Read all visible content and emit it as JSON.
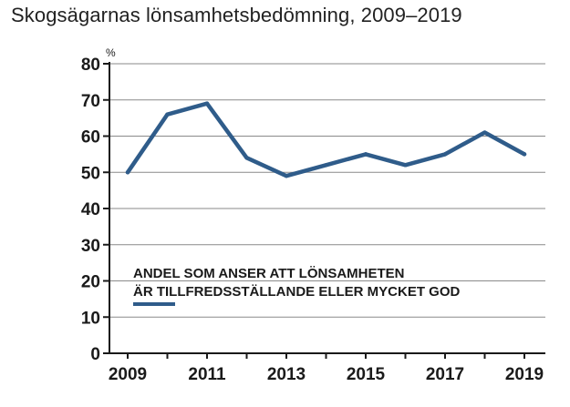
{
  "title": "Skogsägarnas lönsamhetsbedömning, 2009–2019",
  "chart_data": {
    "type": "line",
    "title": "Skogsägarnas lönsamhetsbedömning, 2009–2019",
    "unit_label": "%",
    "xlabel": "",
    "ylabel": "",
    "x": [
      2009,
      2010,
      2011,
      2012,
      2013,
      2014,
      2015,
      2016,
      2017,
      2018,
      2019
    ],
    "x_tick_labels": [
      "2009",
      "2011",
      "2013",
      "2015",
      "2017",
      "2019"
    ],
    "y_tick_labels": [
      "0",
      "10",
      "20",
      "30",
      "40",
      "50",
      "60",
      "70",
      "80"
    ],
    "ylim": [
      0,
      80
    ],
    "grid": true,
    "series": [
      {
        "name": "ANDEL SOM ANSER ATT LÖNSAMHETEN ÄR TILLFREDSSTÄLLANDE ELLER MYCKET GOD",
        "values": [
          50,
          66,
          69,
          54,
          49,
          52,
          55,
          52,
          55,
          61,
          55
        ],
        "color": "#2f5c8a"
      }
    ],
    "legend": {
      "line1": "ANDEL SOM ANSER ATT LÖNSAMHETEN",
      "line2": "ÄR TILLFREDSSTÄLLANDE ELLER MYCKET GOD",
      "placement": "bottom-center"
    }
  }
}
